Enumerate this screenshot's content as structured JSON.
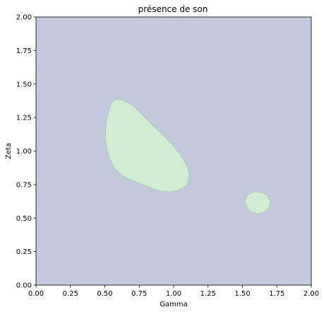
{
  "chart_data": {
    "type": "contour",
    "title": "présence de son",
    "xlabel": "Gamma",
    "ylabel": "Zeta",
    "xlim": [
      0,
      2
    ],
    "ylim": [
      0,
      2
    ],
    "xticks": [
      "0.00",
      "0.25",
      "0.50",
      "0.75",
      "1.00",
      "1.25",
      "1.50",
      "1.75",
      "2.00"
    ],
    "yticks": [
      "0.00",
      "0.25",
      "0.50",
      "0.75",
      "1.00",
      "1.25",
      "1.50",
      "1.75",
      "2.00"
    ],
    "grid": false,
    "background_color": "#c3c9dc",
    "regions": [
      {
        "color": "#d0ecd3",
        "edge_color": "#9cc4a0",
        "points": [
          [
            0.53,
            1.3
          ],
          [
            0.55,
            1.36
          ],
          [
            0.59,
            1.385
          ],
          [
            0.64,
            1.375
          ],
          [
            0.7,
            1.34
          ],
          [
            0.77,
            1.27
          ],
          [
            0.85,
            1.19
          ],
          [
            0.94,
            1.1
          ],
          [
            1.02,
            1.01
          ],
          [
            1.08,
            0.92
          ],
          [
            1.11,
            0.84
          ],
          [
            1.1,
            0.76
          ],
          [
            1.06,
            0.72
          ],
          [
            1.0,
            0.7
          ],
          [
            0.92,
            0.7
          ],
          [
            0.85,
            0.72
          ],
          [
            0.75,
            0.76
          ],
          [
            0.66,
            0.8
          ],
          [
            0.59,
            0.85
          ],
          [
            0.55,
            0.91
          ],
          [
            0.52,
            1.0
          ],
          [
            0.505,
            1.1
          ],
          [
            0.51,
            1.21
          ]
        ]
      },
      {
        "color": "#d0ecd3",
        "edge_color": "#9cc4a0",
        "points": [
          [
            1.52,
            0.615
          ],
          [
            1.525,
            0.65
          ],
          [
            1.55,
            0.68
          ],
          [
            1.59,
            0.695
          ],
          [
            1.64,
            0.69
          ],
          [
            1.68,
            0.665
          ],
          [
            1.7,
            0.625
          ],
          [
            1.69,
            0.58
          ],
          [
            1.66,
            0.55
          ],
          [
            1.61,
            0.535
          ],
          [
            1.57,
            0.545
          ],
          [
            1.54,
            0.57
          ]
        ]
      }
    ]
  }
}
